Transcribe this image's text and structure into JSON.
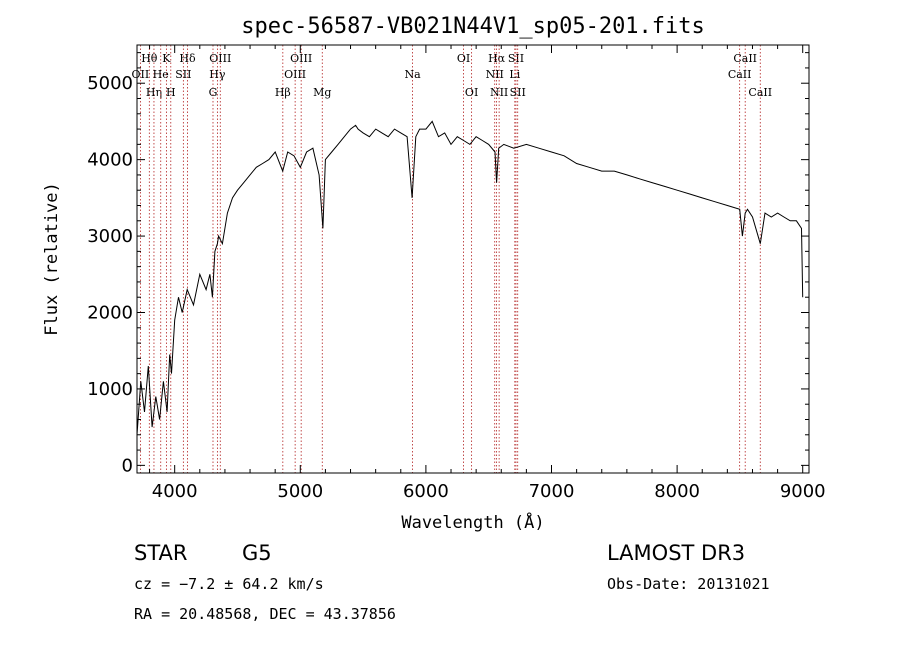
{
  "chart_data": {
    "type": "line",
    "title": "spec-56587-VB021N44V1_sp05-201.fits",
    "xlabel": "Wavelength (Å)",
    "ylabel": "Flux (relative)",
    "xlim": [
      3700,
      9050
    ],
    "ylim": [
      -100,
      5500
    ],
    "xticks": [
      4000,
      5000,
      6000,
      7000,
      8000,
      9000
    ],
    "yticks": [
      0,
      1000,
      2000,
      3000,
      4000,
      5000
    ],
    "grid": false,
    "series": [
      {
        "color": "#000000",
        "x": [
          3700,
          3730,
          3760,
          3790,
          3820,
          3850,
          3880,
          3910,
          3940,
          3960,
          3975,
          4000,
          4030,
          4060,
          4100,
          4150,
          4200,
          4250,
          4280,
          4300,
          4320,
          4340,
          4350,
          4380,
          4420,
          4460,
          4500,
          4550,
          4600,
          4650,
          4700,
          4750,
          4800,
          4860,
          4900,
          4950,
          5000,
          5050,
          5100,
          5150,
          5180,
          5200,
          5250,
          5300,
          5350,
          5400,
          5440,
          5460,
          5500,
          5550,
          5600,
          5650,
          5700,
          5750,
          5800,
          5850,
          5890,
          5920,
          5950,
          6000,
          6050,
          6100,
          6150,
          6200,
          6250,
          6300,
          6350,
          6400,
          6450,
          6500,
          6550,
          6563,
          6580,
          6620,
          6700,
          6800,
          6900,
          7000,
          7100,
          7200,
          7300,
          7400,
          7500,
          7600,
          7700,
          7800,
          7900,
          8000,
          8100,
          8200,
          8300,
          8400,
          8498,
          8520,
          8542,
          8560,
          8600,
          8662,
          8700,
          8750,
          8800,
          8850,
          8900,
          8950,
          8990,
          9000
        ],
        "y": [
          400,
          1100,
          700,
          1300,
          500,
          900,
          600,
          1100,
          700,
          1450,
          1200,
          1900,
          2200,
          2000,
          2300,
          2100,
          2500,
          2300,
          2500,
          2200,
          2800,
          2900,
          3000,
          2900,
          3300,
          3500,
          3600,
          3700,
          3800,
          3900,
          3950,
          4000,
          4100,
          3850,
          4100,
          4050,
          3900,
          4100,
          4150,
          3800,
          3100,
          4000,
          4100,
          4200,
          4300,
          4400,
          4450,
          4400,
          4350,
          4300,
          4400,
          4350,
          4300,
          4400,
          4350,
          4300,
          3500,
          4300,
          4400,
          4400,
          4500,
          4300,
          4350,
          4200,
          4300,
          4250,
          4200,
          4300,
          4250,
          4200,
          4100,
          3700,
          4150,
          4200,
          4150,
          4200,
          4150,
          4100,
          4050,
          3950,
          3900,
          3850,
          3850,
          3800,
          3750,
          3700,
          3650,
          3600,
          3550,
          3500,
          3450,
          3400,
          3350,
          3000,
          3300,
          3350,
          3250,
          2900,
          3300,
          3250,
          3300,
          3250,
          3200,
          3200,
          3100,
          2200
        ]
      }
    ],
    "spectral_lines": [
      {
        "label": "Hθ",
        "x": 3798,
        "row": 1
      },
      {
        "label": "OII",
        "x": 3727,
        "row": 2
      },
      {
        "label": "Hη",
        "x": 3835,
        "row": 3
      },
      {
        "label": "K",
        "x": 3934,
        "row": 1
      },
      {
        "label": "He",
        "x": 3889,
        "row": 2
      },
      {
        "label": "H",
        "x": 3969,
        "row": 3
      },
      {
        "label": "Hδ",
        "x": 4102,
        "row": 1
      },
      {
        "label": "SII",
        "x": 4069,
        "row": 2
      },
      {
        "label": "OIII",
        "x": 4363,
        "row": 1
      },
      {
        "label": "Hγ",
        "x": 4340,
        "row": 2
      },
      {
        "label": "G",
        "x": 4305,
        "row": 3
      },
      {
        "label": "Hβ",
        "x": 4861,
        "row": 3
      },
      {
        "label": "OIII",
        "x": 5007,
        "row": 1
      },
      {
        "label": "OIII",
        "x": 4959,
        "row": 2
      },
      {
        "label": "Mg",
        "x": 5175,
        "row": 3
      },
      {
        "label": "Na",
        "x": 5894,
        "row": 2
      },
      {
        "label": "OI",
        "x": 6300,
        "row": 1
      },
      {
        "label": "OI",
        "x": 6364,
        "row": 3
      },
      {
        "label": "Hα",
        "x": 6563,
        "row": 1
      },
      {
        "label": "NII",
        "x": 6548,
        "row": 2
      },
      {
        "label": "NII",
        "x": 6583,
        "row": 3
      },
      {
        "label": "SII",
        "x": 6717,
        "row": 1
      },
      {
        "label": "Li",
        "x": 6708,
        "row": 2
      },
      {
        "label": "SII",
        "x": 6731,
        "row": 3
      },
      {
        "label": "CaII",
        "x": 8542,
        "row": 1
      },
      {
        "label": "CaII",
        "x": 8498,
        "row": 2
      },
      {
        "label": "CaII",
        "x": 8662,
        "row": 3
      }
    ]
  },
  "info": {
    "class": "STAR",
    "subclass": "G5",
    "survey": "LAMOST DR3",
    "cz": "cz = −7.2 ± 64.2 km/s",
    "obs_date": "Obs-Date: 20131021",
    "coords": "RA =  20.48568, DEC =  43.37856"
  }
}
